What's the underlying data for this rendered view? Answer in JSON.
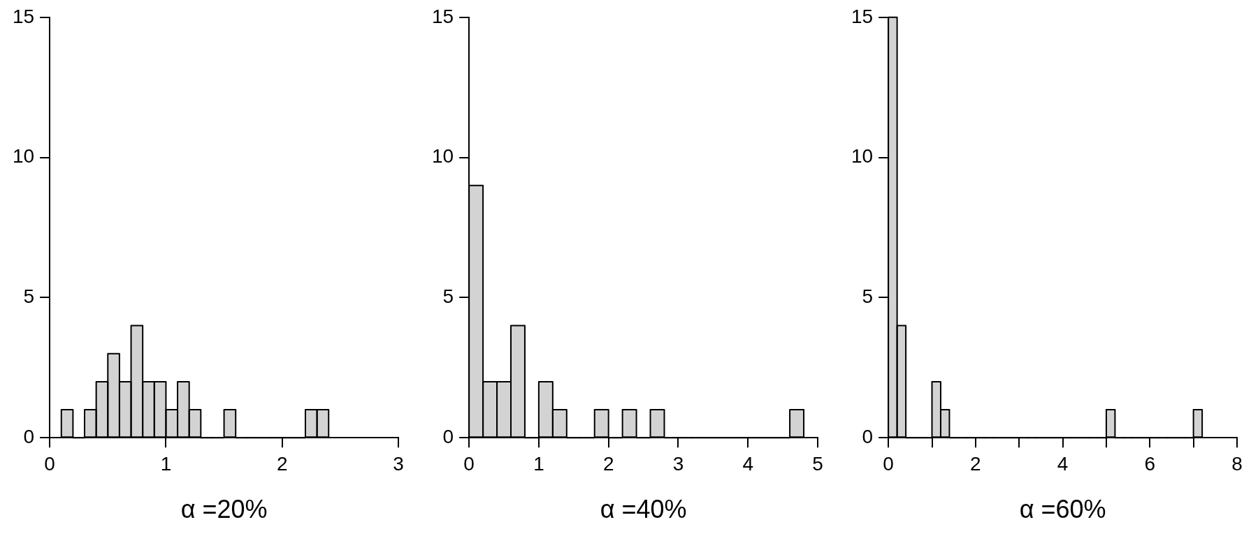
{
  "chart_data": [
    {
      "type": "histogram",
      "xlabel": "α =20%",
      "color": "#d3d3d3",
      "bins": [
        0.1,
        0.2,
        0.3,
        0.4,
        0.5,
        0.6,
        0.7,
        0.8,
        0.9,
        1.0,
        1.1,
        1.2,
        1.3,
        1.4,
        1.5,
        1.6,
        1.7,
        1.8,
        1.9,
        2.0,
        2.1,
        2.2,
        2.3,
        2.4
      ],
      "values": [
        1,
        0,
        1,
        2,
        3,
        2,
        4,
        2,
        2,
        1,
        2,
        1,
        0,
        0,
        1,
        0,
        0,
        0,
        0,
        0,
        0,
        1,
        1
      ],
      "xlim": [
        0,
        3
      ],
      "xticks": [
        0,
        1,
        2,
        3
      ],
      "ylim": [
        0,
        15
      ],
      "yticks": [
        0,
        5,
        10,
        15
      ],
      "grid": false,
      "legend": false
    },
    {
      "type": "histogram",
      "xlabel": "α =40%",
      "color": "#d3d3d3",
      "bins": [
        0,
        0.2,
        0.4,
        0.6,
        0.8,
        1.0,
        1.2,
        1.4,
        1.6,
        1.8,
        2.0,
        2.2,
        2.4,
        2.6,
        2.8,
        3.0,
        3.2,
        3.4,
        3.6,
        3.8,
        4.0,
        4.2,
        4.4,
        4.6,
        4.8
      ],
      "values": [
        9,
        2,
        2,
        4,
        0,
        2,
        1,
        0,
        0,
        1,
        0,
        1,
        0,
        1,
        0,
        0,
        0,
        0,
        0,
        0,
        0,
        0,
        0,
        1
      ],
      "xlim": [
        0,
        5
      ],
      "xticks": [
        0,
        1,
        2,
        3,
        4,
        5
      ],
      "ylim": [
        0,
        15
      ],
      "yticks": [
        0,
        5,
        10,
        15
      ],
      "grid": false,
      "legend": false
    },
    {
      "type": "histogram",
      "xlabel": "α =60%",
      "color": "#d3d3d3",
      "bins": [
        0,
        0.2,
        0.4,
        0.6,
        0.8,
        1.0,
        1.2,
        1.4,
        1.6,
        1.8,
        2.0,
        2.2,
        2.4,
        2.6,
        2.8,
        3.0,
        3.2,
        3.4,
        3.6,
        3.8,
        4.0,
        4.2,
        4.4,
        4.6,
        4.8,
        5.0,
        5.2,
        5.4,
        5.6,
        5.8,
        6.0,
        6.2,
        6.4,
        6.6,
        6.8,
        7.0,
        7.2
      ],
      "values": [
        15,
        4,
        0,
        0,
        0,
        2,
        1,
        0,
        0,
        0,
        0,
        0,
        0,
        0,
        0,
        0,
        0,
        0,
        0,
        0,
        0,
        0,
        0,
        0,
        0,
        1,
        0,
        0,
        0,
        0,
        0,
        0,
        0,
        0,
        0,
        1
      ],
      "xlim": [
        0,
        8
      ],
      "xticks": [
        0,
        {
          "value": 1,
          "label": null
        },
        2,
        {
          "value": 3,
          "label": null
        },
        4,
        {
          "value": 5,
          "label": null
        },
        6,
        {
          "value": 7,
          "label": null
        },
        8
      ],
      "ylim": [
        0,
        15
      ],
      "yticks": [
        0,
        5,
        10,
        15
      ],
      "grid": false,
      "legend": false
    }
  ]
}
